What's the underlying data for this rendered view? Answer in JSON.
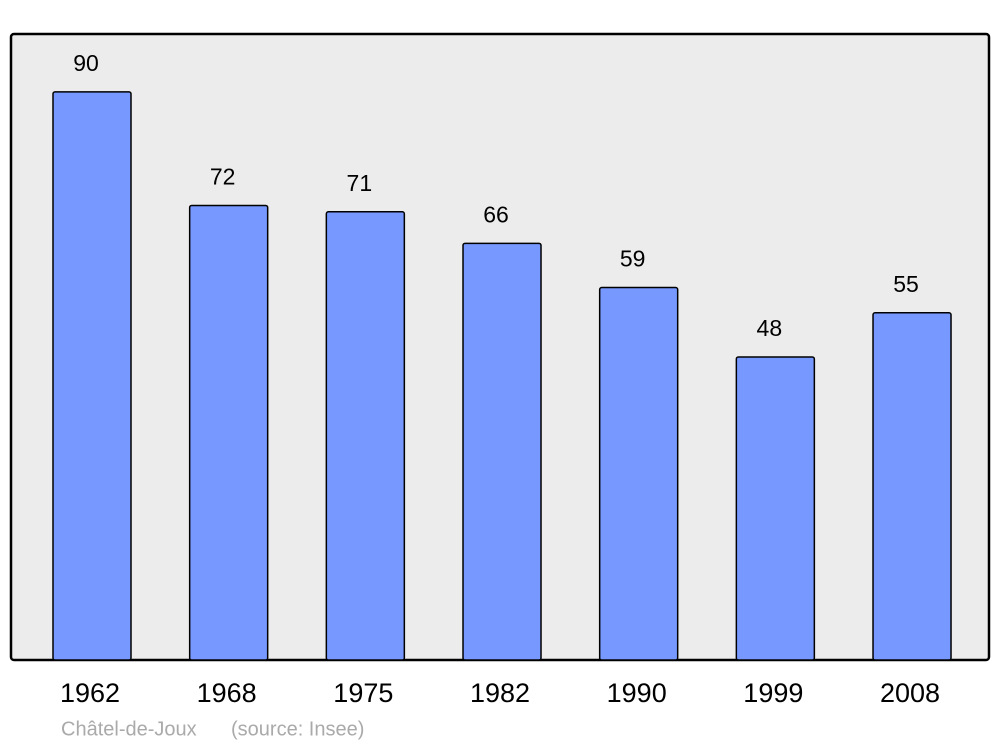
{
  "chart_data": {
    "type": "bar",
    "categories": [
      "1962",
      "1968",
      "1975",
      "1982",
      "1990",
      "1999",
      "2008"
    ],
    "values": [
      90,
      72,
      71,
      66,
      59,
      48,
      55
    ],
    "color": "#7799ff",
    "ylim": [
      0,
      99
    ],
    "caption": "Châtel-de-Joux",
    "source": "(source: Insee)"
  }
}
